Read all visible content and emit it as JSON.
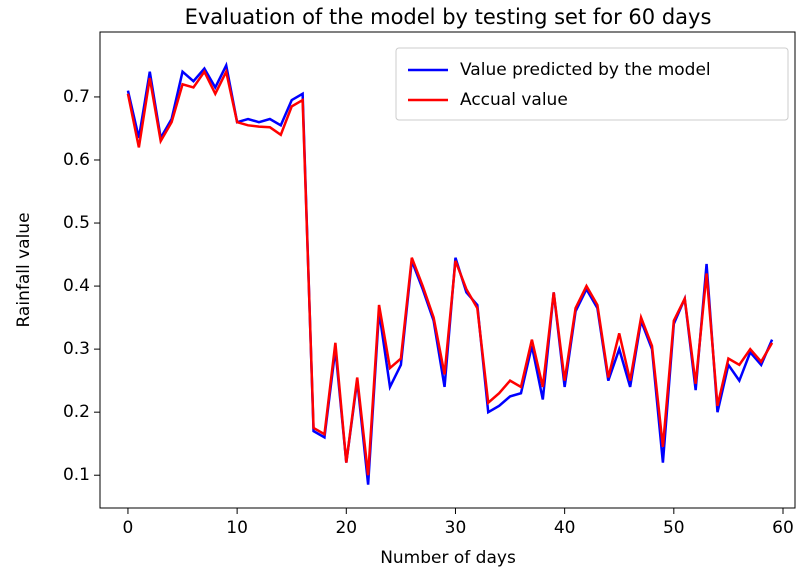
{
  "chart_data": {
    "type": "line",
    "title": "Evaluation of the model by testing set for 60 days",
    "xlabel": "Number of days",
    "ylabel": "Rainfall value",
    "x": [
      0,
      1,
      2,
      3,
      4,
      5,
      6,
      7,
      8,
      9,
      10,
      11,
      12,
      13,
      14,
      15,
      16,
      17,
      18,
      19,
      20,
      21,
      22,
      23,
      24,
      25,
      26,
      27,
      28,
      29,
      30,
      31,
      32,
      33,
      34,
      35,
      36,
      37,
      38,
      39,
      40,
      41,
      42,
      43,
      44,
      45,
      46,
      47,
      48,
      49,
      50,
      51,
      52,
      53,
      54,
      55,
      56,
      57,
      58,
      59
    ],
    "series": [
      {
        "name": "Value predicted by the model",
        "color": "#0000ff",
        "values": [
          0.71,
          0.635,
          0.74,
          0.635,
          0.665,
          0.74,
          0.725,
          0.745,
          0.715,
          0.75,
          0.66,
          0.665,
          0.66,
          0.665,
          0.655,
          0.695,
          0.705,
          0.17,
          0.16,
          0.3,
          0.12,
          0.25,
          0.085,
          0.36,
          0.24,
          0.275,
          0.44,
          0.395,
          0.345,
          0.24,
          0.445,
          0.39,
          0.37,
          0.2,
          0.21,
          0.225,
          0.23,
          0.305,
          0.22,
          0.39,
          0.24,
          0.36,
          0.395,
          0.365,
          0.25,
          0.3,
          0.24,
          0.345,
          0.3,
          0.12,
          0.34,
          0.38,
          0.235,
          0.435,
          0.2,
          0.275,
          0.25,
          0.295,
          0.275,
          0.315
        ]
      },
      {
        "name": "Accual value",
        "color": "#ff0000",
        "values": [
          0.705,
          0.62,
          0.73,
          0.63,
          0.66,
          0.72,
          0.715,
          0.74,
          0.705,
          0.74,
          0.66,
          0.655,
          0.653,
          0.652,
          0.64,
          0.685,
          0.695,
          0.175,
          0.165,
          0.31,
          0.12,
          0.255,
          0.1,
          0.37,
          0.27,
          0.285,
          0.445,
          0.4,
          0.35,
          0.26,
          0.44,
          0.395,
          0.365,
          0.215,
          0.23,
          0.25,
          0.24,
          0.315,
          0.24,
          0.39,
          0.25,
          0.365,
          0.4,
          0.37,
          0.255,
          0.325,
          0.25,
          0.35,
          0.305,
          0.145,
          0.345,
          0.38,
          0.245,
          0.42,
          0.21,
          0.285,
          0.275,
          0.3,
          0.28,
          0.31
        ]
      }
    ],
    "xlim": [
      -2.56,
      61.1
    ],
    "ylim": [
      0.048,
      0.803
    ],
    "xticks": [
      0,
      10,
      20,
      30,
      40,
      50,
      60
    ],
    "yticks": [
      0.1,
      0.2,
      0.3,
      0.4,
      0.5,
      0.6,
      0.7
    ],
    "legend": "upper right"
  }
}
